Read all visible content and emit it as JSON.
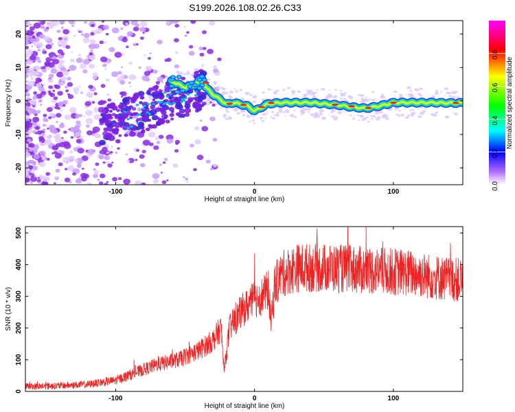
{
  "title": "S199.2026.108.02.26.C33",
  "colors": {
    "snr_line": "#ee2222",
    "spec_bg": "#ffffff",
    "axis": "#000000"
  },
  "chart_data": [
    {
      "type": "heatmap",
      "name": "spectrogram",
      "xlabel": "Height of straight line (km)",
      "ylabel": "Frequency (Hz)",
      "xlim": [
        -165,
        150
      ],
      "ylim": [
        -25,
        24
      ],
      "xticks": [
        -100,
        0,
        100
      ],
      "yticks": [
        -20,
        -10,
        0,
        10,
        20
      ],
      "ridge_x": [
        -60,
        -50,
        -42,
        -38,
        -35,
        -30,
        -25,
        -20,
        -15,
        -10,
        -5,
        0,
        10,
        20,
        40,
        60,
        70,
        80,
        90,
        100,
        110,
        120,
        130,
        140,
        148
      ],
      "ridge_y": [
        6,
        4,
        5,
        7,
        4,
        2,
        0.5,
        -1,
        -0.5,
        -1,
        -1.5,
        -3,
        -0.8,
        -0.5,
        -0.5,
        -1.2,
        -1.8,
        -2.2,
        -1.5,
        -0.5,
        -0.5,
        -0.5,
        -0.5,
        -0.6,
        -0.6
      ]
    },
    {
      "type": "colorbar",
      "name": "amplitude-scale",
      "label": "Normalized spectral amplitude",
      "range": [
        0,
        1
      ],
      "ticks": [
        "0.0",
        "0.2",
        "0.4",
        "0.6",
        "0.8"
      ],
      "tick_values": [
        0.0,
        0.2,
        0.4,
        0.6,
        0.8
      ],
      "colors": [
        "#ffffff",
        "#7a00ff",
        "#0000ff",
        "#00ffff",
        "#00ff00",
        "#ffff00",
        "#ff0000",
        "#ff00ff"
      ]
    },
    {
      "type": "line",
      "name": "snr",
      "xlabel": "Height of straight line (km)",
      "ylabel": "SNR (10 * v/v)",
      "xlim": [
        -165,
        150
      ],
      "ylim": [
        0,
        520
      ],
      "xticks": [
        -100,
        0,
        100
      ],
      "yticks": [
        0,
        100,
        200,
        300,
        400,
        500
      ],
      "trend_x": [
        -165,
        -140,
        -120,
        -100,
        -85,
        -70,
        -55,
        -40,
        -30,
        -24,
        -22,
        -18,
        -10,
        0,
        5,
        10,
        12,
        15,
        20,
        30,
        50,
        70,
        90,
        110,
        130,
        150
      ],
      "trend_y": [
        15,
        18,
        22,
        35,
        60,
        85,
        100,
        130,
        160,
        200,
        60,
        200,
        250,
        290,
        300,
        320,
        220,
        340,
        370,
        390,
        390,
        385,
        380,
        375,
        360,
        350
      ]
    }
  ]
}
